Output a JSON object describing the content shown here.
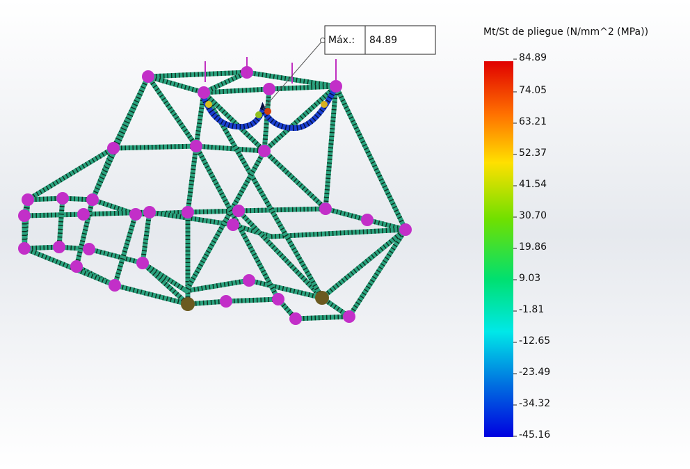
{
  "legend": {
    "title": "Mt/St de pliegue (N/mm^2 (MPa))",
    "labels": [
      "84.89",
      "74.05",
      "63.21",
      "52.37",
      "41.54",
      "30.70",
      "19.86",
      "9.03",
      "-1.81",
      "-12.65",
      "-23.49",
      "-34.32",
      "-45.16"
    ]
  },
  "probe": {
    "label": "Máx.:",
    "value": "84.89"
  }
}
